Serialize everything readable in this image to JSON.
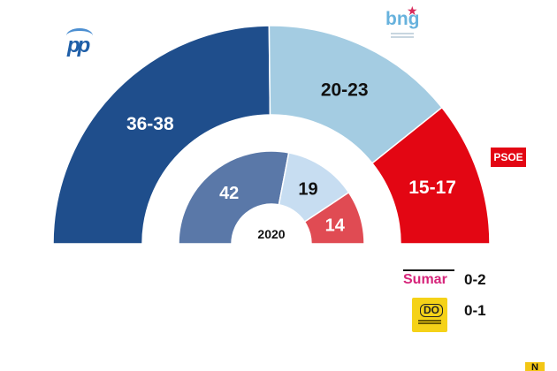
{
  "chart_data": {
    "type": "semicircle_donut",
    "outer": {
      "segments": [
        {
          "party": "PP",
          "label": "36-38",
          "seats": 37,
          "color": "#1f4e8c",
          "text_color": "#ffffff"
        },
        {
          "party": "BNG",
          "label": "20-23",
          "seats": 21.5,
          "color": "#a4cce2",
          "text_color": "#111111"
        },
        {
          "party": "PSOE",
          "label": "15-17",
          "seats": 16,
          "color": "#e30613",
          "text_color": "#ffffff"
        }
      ]
    },
    "inner": {
      "year": "2020",
      "segments": [
        {
          "party": "PP",
          "label": "42",
          "seats": 42,
          "color": "#5a78a8",
          "text_color": "#ffffff"
        },
        {
          "party": "BNG",
          "label": "19",
          "seats": 19,
          "color": "#c7ddf1",
          "text_color": "#111111"
        },
        {
          "party": "PSOE",
          "label": "14",
          "seats": 14,
          "color": "#e04b53",
          "text_color": "#ffffff"
        }
      ]
    },
    "others": [
      {
        "party": "Sumar",
        "label": "0-2"
      },
      {
        "party": "DO",
        "label": "0-1"
      }
    ]
  },
  "logos": {
    "pp": "pp",
    "bng": "bng",
    "psoe": "PSOE",
    "sumar": "Sumar",
    "do": "DO",
    "corner": "N"
  }
}
